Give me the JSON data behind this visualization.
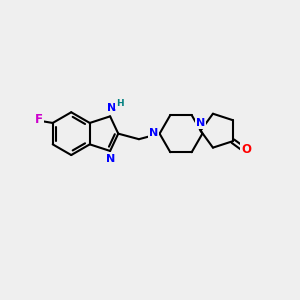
{
  "background_color": "#efefef",
  "bond_color": "#000000",
  "bond_width": 1.5,
  "N_color": "#0000ff",
  "O_color": "#ff0000",
  "F_color": "#cc00cc",
  "H_color": "#008080",
  "figsize": [
    3.0,
    3.0
  ],
  "dpi": 100,
  "xlim": [
    0,
    10
  ],
  "ylim": [
    0,
    10
  ]
}
